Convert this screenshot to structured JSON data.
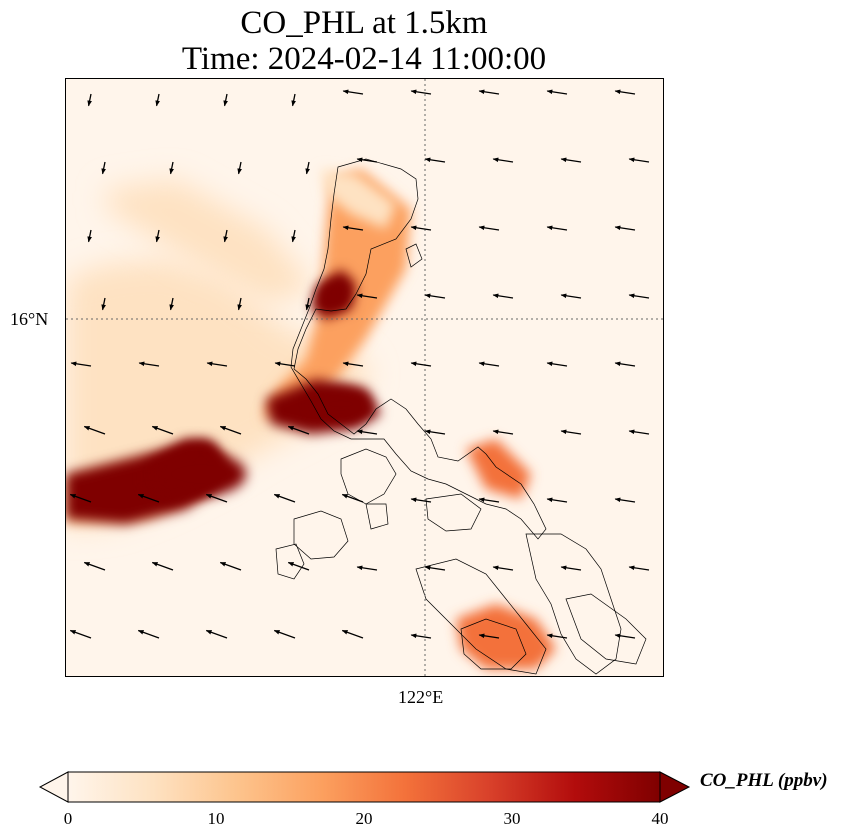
{
  "title_line1": "CO_PHL at 1.5km",
  "title_line2": "Time: 2024-02-14 11:00:00",
  "axes": {
    "lat_tick": "16°N",
    "lon_tick": "122°E"
  },
  "colorbar": {
    "label": "CO_PHL (ppbv)",
    "ticks": [
      "0",
      "10",
      "20",
      "30",
      "40"
    ],
    "min": 0,
    "max": 40,
    "extend": "both",
    "colors": [
      "#fff5eb",
      "#fee2c2",
      "#fdc48d",
      "#fca05f",
      "#f3713a",
      "#d8402a",
      "#b20c0c",
      "#7f0000"
    ]
  },
  "chart_data": {
    "type": "heatmap",
    "variable": "CO_PHL",
    "units": "ppbv",
    "level": "1.5km",
    "time": "2024-02-14 11:00:00",
    "value_range": [
      0,
      40
    ],
    "gridlines": {
      "lat": "16°N",
      "lon": "122°E"
    },
    "plumes": [
      {
        "area": "west sea plume",
        "max_ppbv": 40
      },
      {
        "area": "central Luzon hotspot",
        "max_ppbv": 40
      },
      {
        "area": "north Luzon coast",
        "max_ppbv": 40
      },
      {
        "area": "northwest streak",
        "max_ppbv": 8
      },
      {
        "area": "Bicol",
        "max_ppbv": 22
      },
      {
        "area": "south islands",
        "max_ppbv": 25
      }
    ],
    "wind_vectors": "shown"
  }
}
